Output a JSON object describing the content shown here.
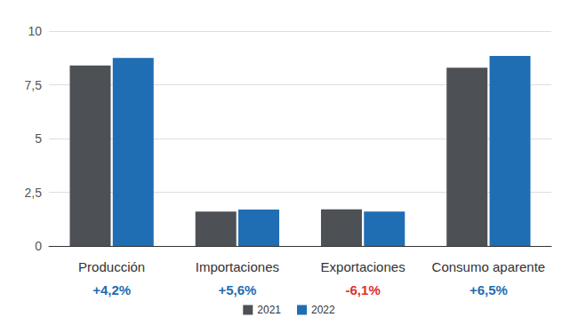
{
  "chart_data": {
    "type": "bar",
    "categories": [
      "Producción",
      "Importaciones",
      "Exportaciones",
      "Consumo aparente"
    ],
    "series": [
      {
        "name": "2021",
        "color": "#4d5054",
        "values": [
          8.4,
          1.6,
          1.7,
          8.3
        ]
      },
      {
        "name": "2022",
        "color": "#1f6db3",
        "values": [
          8.75,
          1.69,
          1.6,
          8.84
        ]
      }
    ],
    "annotations": [
      {
        "text": "+4,2%",
        "color": "#1f6db3"
      },
      {
        "text": "+5,6%",
        "color": "#1f6db3"
      },
      {
        "text": "-6,1%",
        "color": "#e0312a"
      },
      {
        "text": "+6,5%",
        "color": "#1f6db3"
      }
    ],
    "ylim": [
      0,
      10
    ],
    "yticks": [
      0,
      {
        "value": 2.5,
        "label": "2,5"
      },
      5,
      {
        "value": 7.5,
        "label": "7,5"
      },
      10
    ],
    "grid": true,
    "legend": "bottom"
  }
}
